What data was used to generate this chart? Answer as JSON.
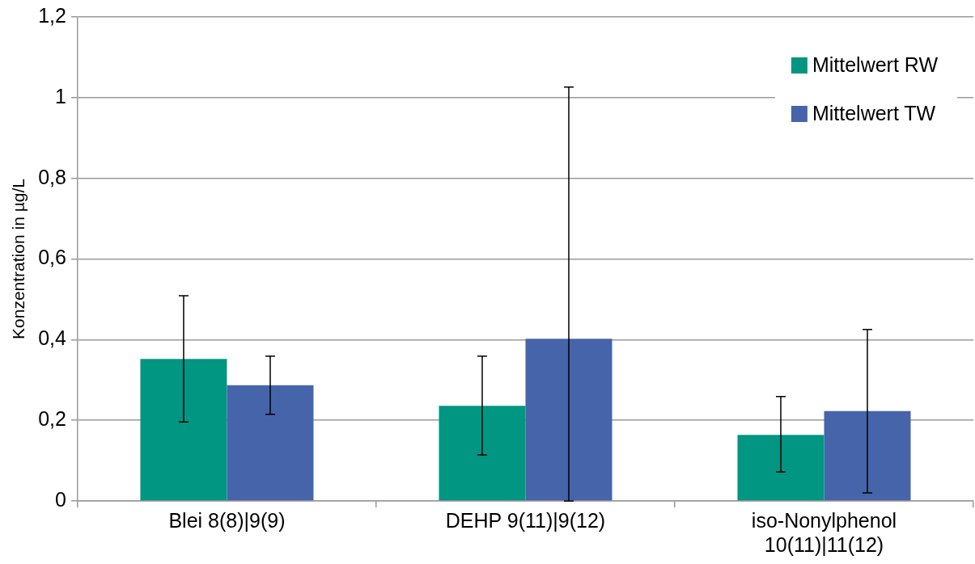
{
  "chart_data": {
    "type": "bar",
    "ylabel": "Konzentration in µg/L",
    "categories": [
      "Blei 8(8)|9(9)",
      "DEHP 9(11)|9(12)",
      "iso-Nonylphenol 10(11)|11(12)"
    ],
    "series": [
      {
        "name": "Mittelwert RW",
        "color": "#009682",
        "values": [
          0.352,
          0.236,
          0.164
        ],
        "errors": [
          [
            0.196,
            0.509
          ],
          [
            0.114,
            0.359
          ],
          [
            0.072,
            0.259
          ]
        ]
      },
      {
        "name": "Mittelwert TW",
        "color": "#4664aa",
        "values": [
          0.287,
          0.402,
          0.223
        ],
        "errors": [
          [
            0.215,
            0.359
          ],
          [
            0,
            1.026
          ],
          [
            0.02,
            0.425
          ]
        ]
      }
    ],
    "ylim": [
      0,
      1.2
    ],
    "yticks": [
      {
        "value": 0,
        "label": "0"
      },
      {
        "value": 0.2,
        "label": "0,2"
      },
      {
        "value": 0.4,
        "label": "0,4"
      },
      {
        "value": 0.6,
        "label": "0,6"
      },
      {
        "value": 0.8,
        "label": "0,8"
      },
      {
        "value": 1,
        "label": "1"
      },
      {
        "value": 1.2,
        "label": "1,2"
      }
    ],
    "grid": "y",
    "legend": "top right"
  }
}
